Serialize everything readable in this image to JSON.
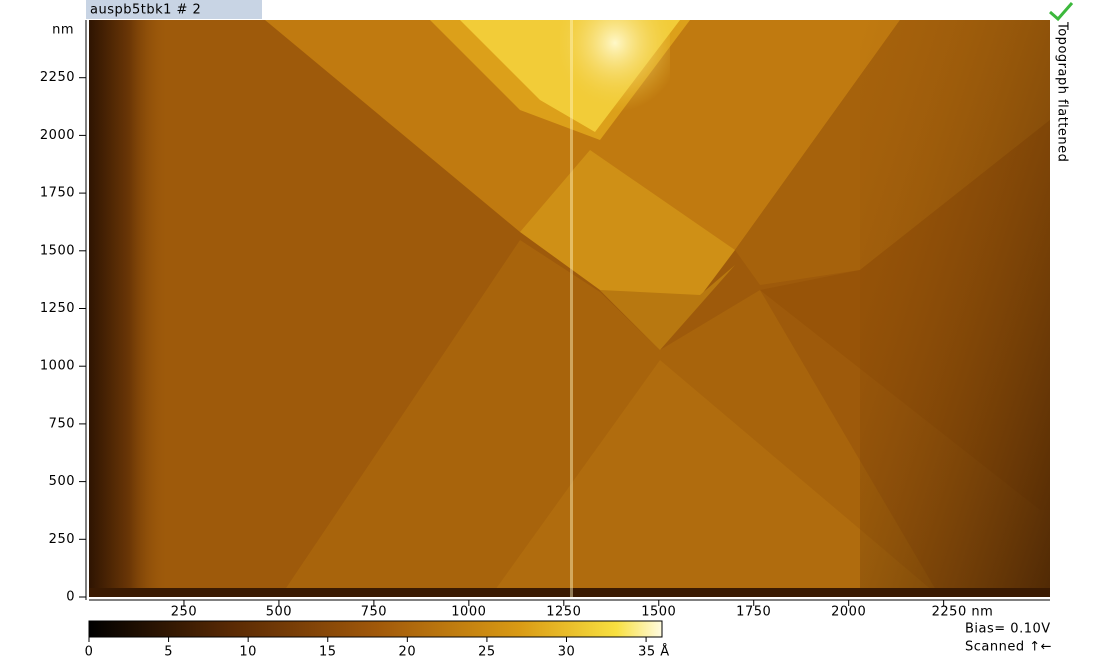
{
  "window": {
    "title": "auspb5tbk1 # 2",
    "side_label": "Topograph  flattened"
  },
  "image": {
    "y_unit": "nm",
    "xlim": [
      0,
      2530
    ],
    "ylim": [
      0,
      2500
    ],
    "yticks": [
      0,
      250,
      500,
      750,
      1000,
      1250,
      1500,
      1750,
      2000,
      2250
    ],
    "xticks": [
      250,
      500,
      750,
      1000,
      1250,
      1500,
      1750,
      2000,
      {
        "value": 2250,
        "label": "2250 nm"
      }
    ]
  },
  "colorbar": {
    "lim": [
      0,
      36
    ],
    "ticks": [
      0,
      5,
      10,
      15,
      20,
      25,
      30,
      {
        "value": 35,
        "label": "35 Å"
      }
    ]
  },
  "status": {
    "bias": "Bias= 0.10V",
    "scan": "Scanned ↑←"
  }
}
